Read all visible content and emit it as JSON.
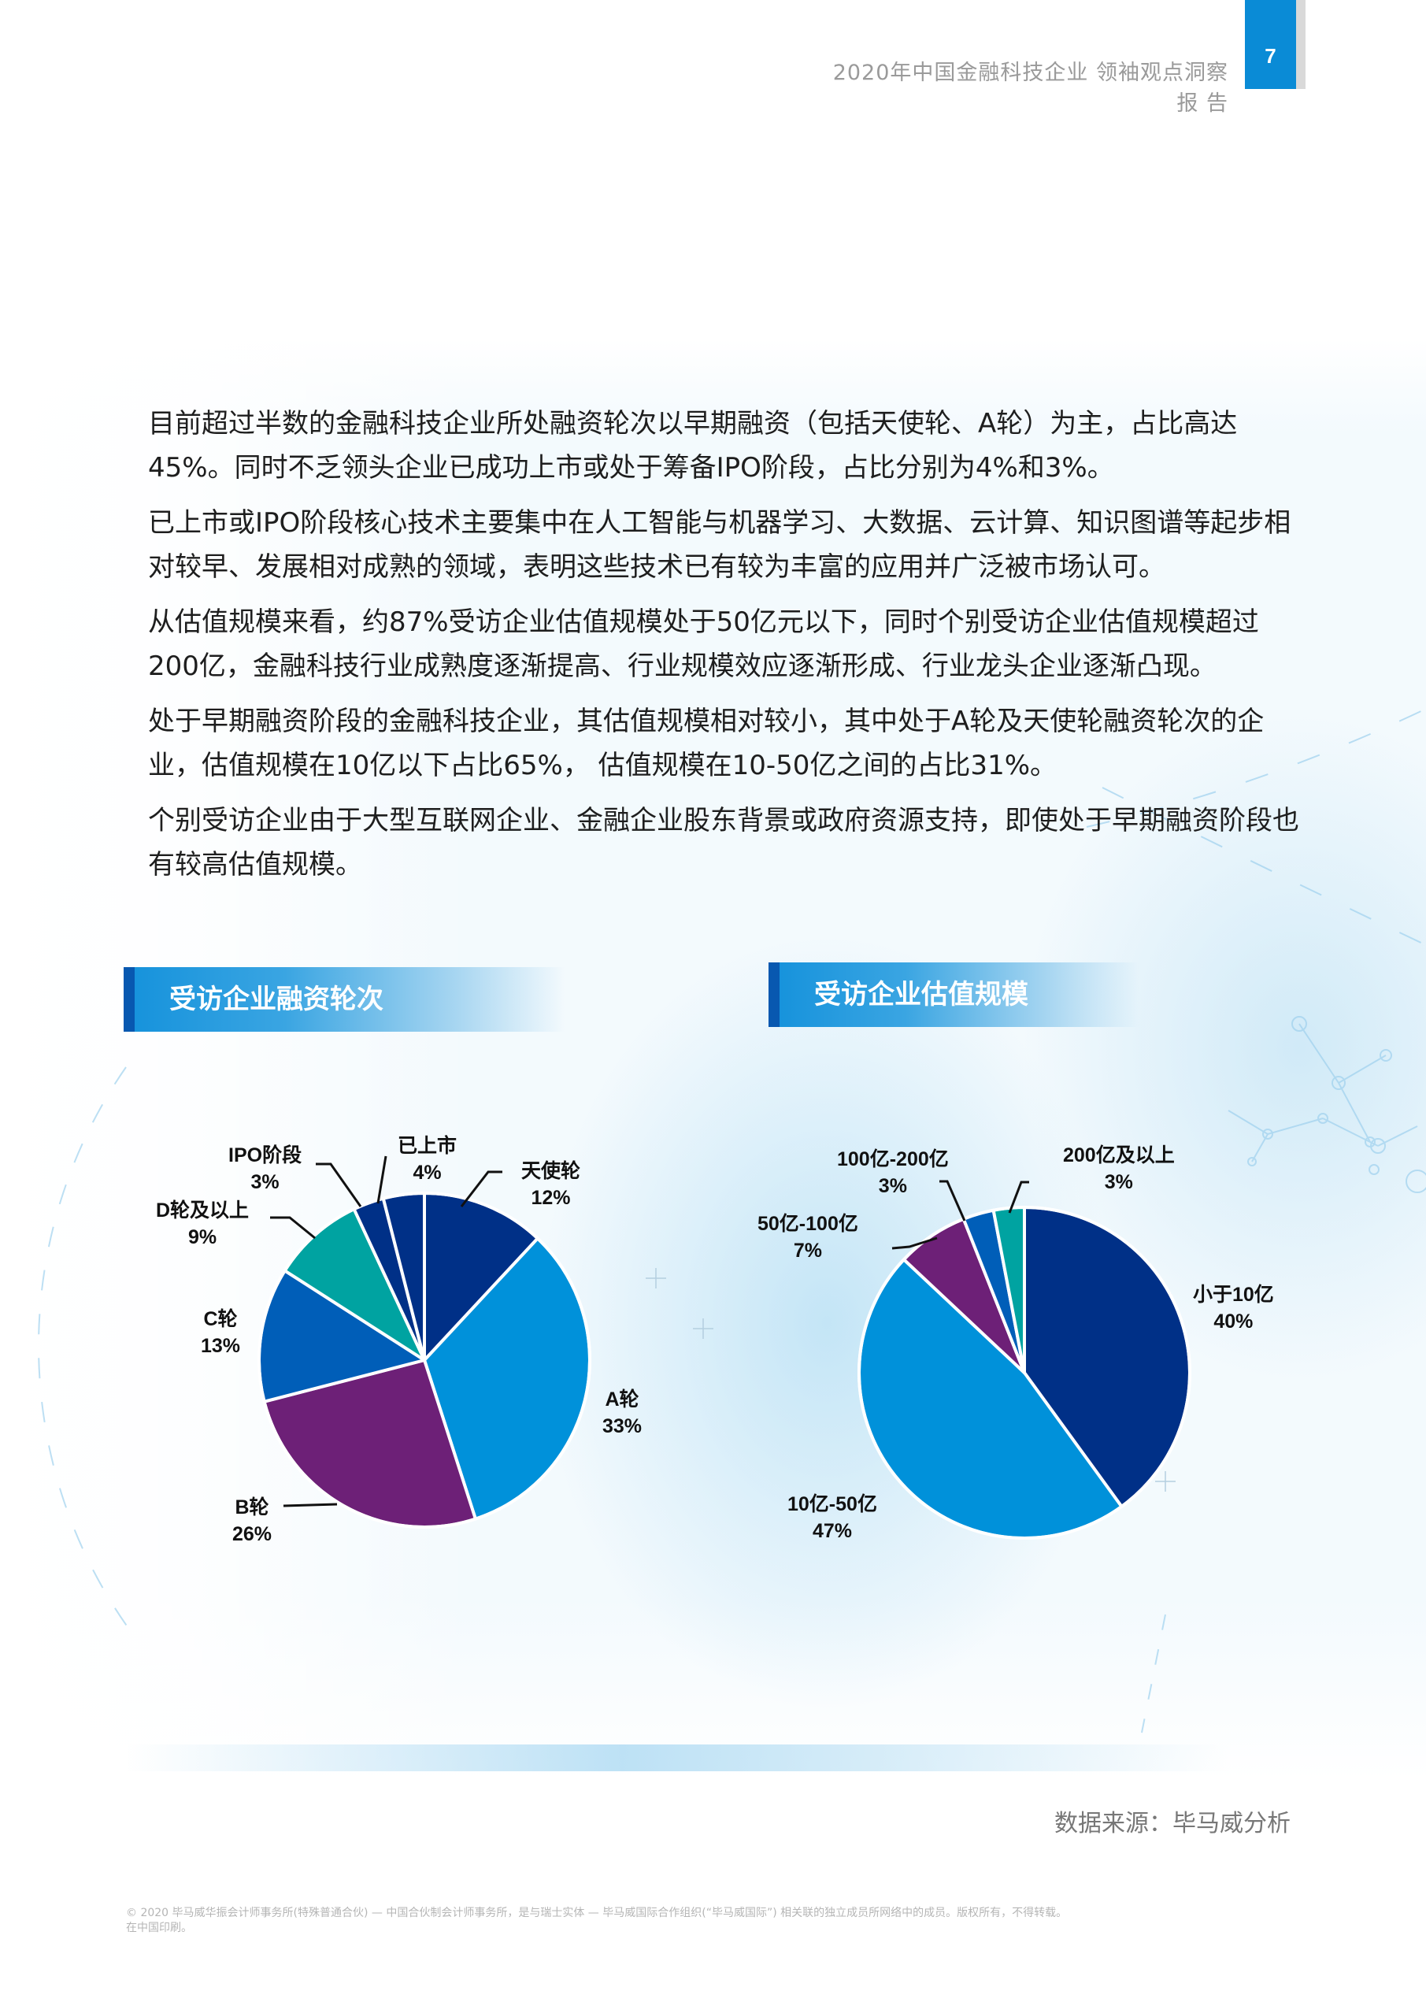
{
  "header": {
    "report_title": "2020年中国金融科技企业 领袖观点洞察报 告",
    "page_number": "7",
    "accent_color": "#0a8bd6"
  },
  "body": {
    "paragraphs": [
      "目前超过半数的金融科技企业所处融资轮次以早期融资（包括天使轮、A轮）为主，占比高达45%。同时不乏领头企业已成功上市或处于筹备IPO阶段，占比分别为4%和3%。",
      "已上市或IPO阶段核心技术主要集中在人工智能与机器学习、大数据、云计算、知识图谱等起步相对较早、发展相对成熟的领域，表明这些技术已有较为丰富的应用并广泛被市场认可。",
      "从估值规模来看，约87%受访企业估值规模处于50亿元以下，同时个别受访企业估值规模超过200亿，金融科技行业成熟度逐渐提高、行业规模效应逐渐形成、行业龙头企业逐渐凸现。",
      "处于早期融资阶段的金融科技企业，其估值规模相对较小，其中处于A轮及天使轮融资轮次的企业，估值规模在10亿以下占比65%， 估值规模在10-50亿之间的占比31%。",
      "个别受访企业由于大型互联网企业、金融企业股东背景或政府资源支持，即使处于早期融资阶段也有较高估值规模。"
    ]
  },
  "sections": {
    "left_title": "受访企业融资轮次",
    "right_title": "受访企业估值规模"
  },
  "chart_data": [
    {
      "type": "pie",
      "title": "受访企业融资轮次",
      "start_angle": "12 o'clock, clockwise",
      "categories": [
        "天使轮",
        "A轮",
        "B轮",
        "C轮",
        "D轮及以上",
        "IPO阶段",
        "已上市"
      ],
      "values": [
        12,
        33,
        26,
        13,
        9,
        3,
        4
      ],
      "labels": [
        "12%",
        "33%",
        "26%",
        "13%",
        "9%",
        "3%",
        "4%"
      ],
      "colors": [
        "#003087",
        "#0091da",
        "#6d2077",
        "#005eb8",
        "#00a3a1",
        "#003087",
        "#003087"
      ],
      "unit": "%"
    },
    {
      "type": "pie",
      "title": "受访企业估值规模",
      "start_angle": "12 o'clock, clockwise",
      "categories": [
        "小于10亿",
        "10亿-50亿",
        "50亿-100亿",
        "100亿-200亿",
        "200亿及以上"
      ],
      "values": [
        40,
        47,
        7,
        3,
        3
      ],
      "labels": [
        "40%",
        "47%",
        "7%",
        "3%",
        "3%"
      ],
      "colors": [
        "#003087",
        "#0091da",
        "#6d2077",
        "#005eb8",
        "#00a3a1"
      ],
      "unit": "%"
    }
  ],
  "source": "数据来源：毕马威分析",
  "footer": {
    "line1": "© 2020 毕马威华振会计师事务所(特殊普通合伙) — 中国合伙制会计师事务所，是与瑞士实体 — 毕马威国际合作组织(“毕马威国际”) 相关联的独立成员所网络中的成员。版权所有，不得转载。",
    "line2": "在中国印刷。"
  }
}
